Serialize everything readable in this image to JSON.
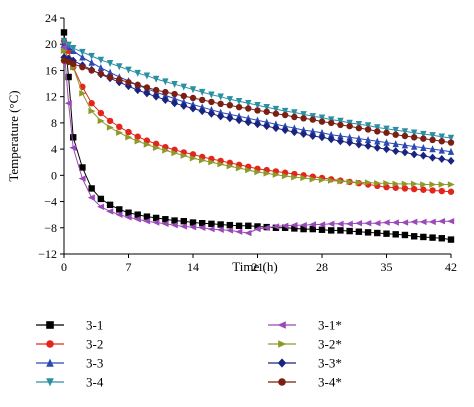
{
  "chart_data": {
    "type": "line",
    "xlabel": "Time (h)",
    "ylabel": "Temperature (°C)",
    "xlim": [
      0,
      42
    ],
    "ylim": [
      -12,
      24
    ],
    "x_ticks": [
      0,
      7,
      14,
      21,
      28,
      35,
      42
    ],
    "y_ticks": [
      -12,
      -8,
      -4,
      0,
      4,
      8,
      12,
      16,
      20,
      24
    ],
    "grid": false,
    "legend_position": "bottom",
    "series": [
      {
        "name": "3-1",
        "color": "#000000",
        "marker": "square",
        "x": [
          0,
          0.5,
          1,
          2,
          3,
          4,
          5,
          6,
          7,
          8,
          9,
          10,
          11,
          12,
          13,
          14,
          15,
          16,
          17,
          18,
          19,
          20,
          21,
          22,
          23,
          24,
          25,
          26,
          27,
          28,
          29,
          30,
          31,
          32,
          33,
          34,
          35,
          36,
          37,
          38,
          39,
          40,
          41,
          42
        ],
        "y": [
          21.8,
          15.0,
          5.8,
          1.2,
          -2.0,
          -3.6,
          -4.5,
          -5.2,
          -5.7,
          -6.0,
          -6.3,
          -6.5,
          -6.7,
          -6.9,
          -7.0,
          -7.2,
          -7.3,
          -7.4,
          -7.5,
          -7.6,
          -7.7,
          -7.7,
          -7.8,
          -7.9,
          -8.0,
          -8.0,
          -8.1,
          -8.2,
          -8.2,
          -8.3,
          -8.4,
          -8.4,
          -8.5,
          -8.6,
          -8.7,
          -8.8,
          -8.9,
          -9.0,
          -9.1,
          -9.3,
          -9.4,
          -9.5,
          -9.6,
          -9.8
        ]
      },
      {
        "name": "3-2",
        "color": "#e3261c",
        "marker": "circle",
        "x": [
          0,
          0.5,
          1,
          2,
          3,
          4,
          5,
          6,
          7,
          8,
          9,
          10,
          11,
          12,
          13,
          14,
          15,
          16,
          17,
          18,
          19,
          20,
          21,
          22,
          23,
          24,
          25,
          26,
          27,
          28,
          29,
          30,
          31,
          32,
          33,
          34,
          35,
          36,
          37,
          38,
          39,
          40,
          41,
          42
        ],
        "y": [
          20.5,
          19.0,
          16.5,
          13.5,
          11.0,
          9.5,
          8.3,
          7.4,
          6.6,
          5.9,
          5.3,
          4.8,
          4.3,
          3.9,
          3.5,
          3.2,
          2.8,
          2.5,
          2.2,
          1.9,
          1.6,
          1.3,
          1.0,
          0.8,
          0.6,
          0.4,
          0.2,
          0.0,
          -0.2,
          -0.4,
          -0.6,
          -0.8,
          -1.0,
          -1.2,
          -1.4,
          -1.6,
          -1.8,
          -1.9,
          -2.0,
          -2.1,
          -2.2,
          -2.3,
          -2.4,
          -2.5
        ]
      },
      {
        "name": "3-3",
        "color": "#2a49b5",
        "marker": "triangle-up",
        "x": [
          0,
          0.5,
          1,
          2,
          3,
          4,
          5,
          6,
          7,
          8,
          9,
          10,
          11,
          12,
          13,
          14,
          15,
          16,
          17,
          18,
          19,
          20,
          21,
          22,
          23,
          24,
          25,
          26,
          27,
          28,
          29,
          30,
          31,
          32,
          33,
          34,
          35,
          36,
          37,
          38,
          39,
          40,
          41,
          42
        ],
        "y": [
          20.0,
          19.6,
          19.0,
          18.0,
          17.2,
          16.4,
          15.7,
          15.0,
          14.4,
          13.8,
          13.2,
          12.7,
          12.2,
          11.7,
          11.2,
          10.8,
          10.4,
          10.0,
          9.6,
          9.3,
          9.0,
          8.7,
          8.4,
          8.1,
          7.8,
          7.5,
          7.2,
          6.9,
          6.7,
          6.5,
          6.2,
          6.0,
          5.8,
          5.6,
          5.4,
          5.2,
          5.0,
          4.8,
          4.6,
          4.4,
          4.2,
          4.0,
          3.8,
          3.6
        ]
      },
      {
        "name": "3-4",
        "color": "#2a8fa3",
        "marker": "triangle-down",
        "x": [
          0,
          0.5,
          1,
          2,
          3,
          4,
          5,
          6,
          7,
          8,
          9,
          10,
          11,
          12,
          13,
          14,
          15,
          16,
          17,
          18,
          19,
          20,
          21,
          22,
          23,
          24,
          25,
          26,
          27,
          28,
          29,
          30,
          31,
          32,
          33,
          34,
          35,
          36,
          37,
          38,
          39,
          40,
          41,
          42
        ],
        "y": [
          20.5,
          19.9,
          19.4,
          18.8,
          18.2,
          17.6,
          17.1,
          16.6,
          16.1,
          15.6,
          15.2,
          14.7,
          14.3,
          13.9,
          13.5,
          13.1,
          12.7,
          12.3,
          12.0,
          11.6,
          11.3,
          11.0,
          10.7,
          10.4,
          10.1,
          9.8,
          9.6,
          9.3,
          9.0,
          8.8,
          8.5,
          8.3,
          8.0,
          7.8,
          7.6,
          7.3,
          7.1,
          6.9,
          6.7,
          6.5,
          6.3,
          6.1,
          5.9,
          5.7
        ]
      },
      {
        "name": "3-1*",
        "color": "#9b48b8",
        "marker": "triangle-left",
        "x": [
          0,
          0.5,
          1,
          2,
          3,
          4,
          5,
          6,
          7,
          8,
          9,
          10,
          11,
          12,
          13,
          14,
          15,
          16,
          17,
          18,
          19,
          20,
          21,
          22,
          23,
          24,
          25,
          26,
          27,
          28,
          29,
          30,
          31,
          32,
          33,
          34,
          35,
          36,
          37,
          38,
          39,
          40,
          41,
          42
        ],
        "y": [
          19.5,
          11.0,
          4.2,
          -0.5,
          -3.4,
          -4.8,
          -5.5,
          -6.0,
          -6.4,
          -6.7,
          -7.0,
          -7.2,
          -7.4,
          -7.6,
          -7.8,
          -7.9,
          -8.0,
          -8.2,
          -8.3,
          -8.4,
          -8.6,
          -8.8,
          -8.2,
          -8.0,
          -7.8,
          -7.7,
          -7.6,
          -7.6,
          -7.5,
          -7.5,
          -7.4,
          -7.4,
          -7.4,
          -7.3,
          -7.3,
          -7.3,
          -7.2,
          -7.2,
          -7.2,
          -7.1,
          -7.1,
          -7.1,
          -7.0,
          -7.0
        ]
      },
      {
        "name": "3-2*",
        "color": "#8d9a2a",
        "marker": "triangle-right",
        "x": [
          0,
          0.5,
          1,
          2,
          3,
          4,
          5,
          6,
          7,
          8,
          9,
          10,
          11,
          12,
          13,
          14,
          15,
          16,
          17,
          18,
          19,
          20,
          21,
          22,
          23,
          24,
          25,
          26,
          27,
          28,
          29,
          30,
          31,
          32,
          33,
          34,
          35,
          36,
          37,
          38,
          39,
          40,
          41,
          42
        ],
        "y": [
          19.0,
          18.0,
          16.5,
          12.5,
          9.8,
          8.3,
          7.3,
          6.5,
          5.8,
          5.2,
          4.7,
          4.2,
          3.8,
          3.4,
          3.0,
          2.6,
          2.3,
          2.0,
          1.7,
          1.4,
          1.1,
          0.8,
          0.5,
          0.3,
          0.1,
          -0.1,
          -0.3,
          -0.4,
          -0.6,
          -0.7,
          -0.8,
          -0.9,
          -1.0,
          -1.1,
          -1.1,
          -1.2,
          -1.2,
          -1.3,
          -1.3,
          -1.3,
          -1.4,
          -1.4,
          -1.4,
          -1.4
        ]
      },
      {
        "name": "3-3*",
        "color": "#1a237e",
        "marker": "diamond",
        "x": [
          0,
          0.5,
          1,
          2,
          3,
          4,
          5,
          6,
          7,
          8,
          9,
          10,
          11,
          12,
          13,
          14,
          15,
          16,
          17,
          18,
          19,
          20,
          21,
          22,
          23,
          24,
          25,
          26,
          27,
          28,
          29,
          30,
          31,
          32,
          33,
          34,
          35,
          36,
          37,
          38,
          39,
          40,
          41,
          42
        ],
        "y": [
          18.0,
          17.8,
          17.5,
          16.8,
          16.1,
          15.4,
          14.8,
          14.2,
          13.6,
          13.0,
          12.5,
          12.0,
          11.5,
          11.0,
          10.6,
          10.2,
          9.8,
          9.4,
          9.0,
          8.7,
          8.4,
          8.1,
          7.8,
          7.5,
          7.2,
          6.9,
          6.6,
          6.3,
          6.0,
          5.8,
          5.5,
          5.2,
          5.0,
          4.7,
          4.5,
          4.2,
          4.0,
          3.7,
          3.5,
          3.2,
          3.0,
          2.7,
          2.5,
          2.2
        ]
      },
      {
        "name": "3-4*",
        "color": "#7a1f12",
        "marker": "circle",
        "x": [
          0,
          0.5,
          1,
          2,
          3,
          4,
          5,
          6,
          7,
          8,
          9,
          10,
          11,
          12,
          13,
          14,
          15,
          16,
          17,
          18,
          19,
          20,
          21,
          22,
          23,
          24,
          25,
          26,
          27,
          28,
          29,
          30,
          31,
          32,
          33,
          34,
          35,
          36,
          37,
          38,
          39,
          40,
          41,
          42
        ],
        "y": [
          17.5,
          17.3,
          17.0,
          16.5,
          16.0,
          15.5,
          15.0,
          14.6,
          14.2,
          13.8,
          13.4,
          13.0,
          12.7,
          12.4,
          12.1,
          11.8,
          11.5,
          11.2,
          10.9,
          10.7,
          10.4,
          10.2,
          9.9,
          9.7,
          9.4,
          9.2,
          8.9,
          8.7,
          8.5,
          8.2,
          8.0,
          7.7,
          7.5,
          7.2,
          7.0,
          6.7,
          6.5,
          6.2,
          6.0,
          5.8,
          5.6,
          5.4,
          5.2,
          5.0
        ]
      }
    ]
  }
}
